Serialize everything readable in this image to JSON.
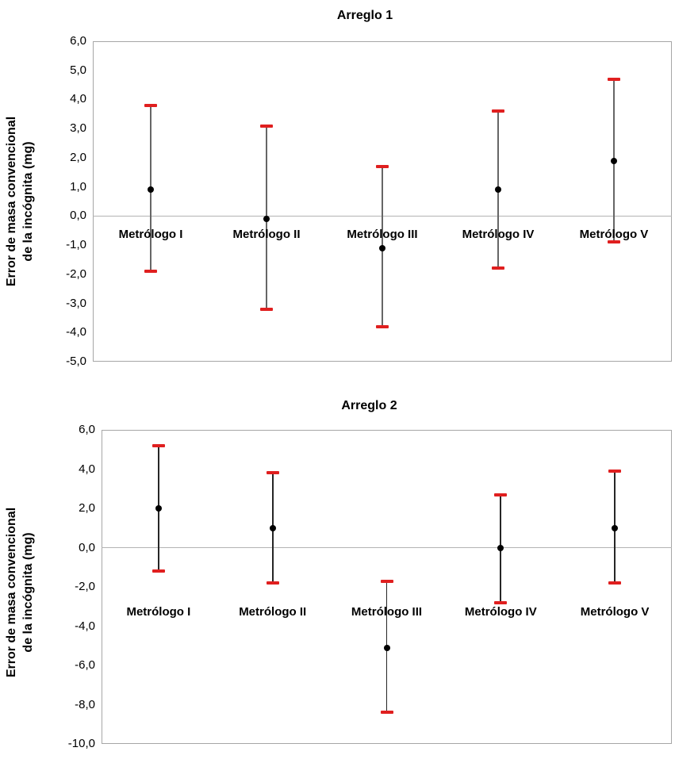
{
  "figure": {
    "background": "#ffffff"
  },
  "charts": [
    {
      "title": "Arreglo 1",
      "y_axis_title_line1": "Error de masa convencional",
      "y_axis_title_line2": "de la incógnita (mg)",
      "chart_data": {
        "type": "scatter",
        "subtype": "mean-with-error-bars",
        "categories": [
          "Metrólogo I",
          "Metrólogo II",
          "Metrólogo III",
          "Metrólogo IV",
          "Metrólogo V"
        ],
        "series": [
          {
            "name": "Error de masa convencional de la incógnita",
            "values": [
              0.9,
              -0.1,
              -1.1,
              0.9,
              1.9
            ],
            "upper_limits": [
              3.8,
              3.1,
              1.7,
              3.6,
              4.7
            ],
            "lower_limits": [
              -1.9,
              -3.2,
              -3.8,
              -1.8,
              -0.9
            ]
          }
        ],
        "xlabel": "",
        "ylabel": "Error de masa convencional de la incógnita (mg)",
        "ylim": [
          -5.0,
          6.0
        ],
        "ytick_step": 1.0,
        "ytick_labels": [
          "6,0",
          "5,0",
          "4,0",
          "3,0",
          "2,0",
          "1,0",
          "0,0",
          "-1,0",
          "-2,0",
          "-3,0",
          "-4,0",
          "-5,0"
        ],
        "zero_line": true,
        "grid": false,
        "legend": "none",
        "marker": "circle",
        "marker_color": "#000000",
        "errorbar_cap_color": "#e01f1f",
        "errorbar_line_color": "#666666"
      }
    },
    {
      "title": "Arreglo 2",
      "y_axis_title_line1": "Error de masa convencional",
      "y_axis_title_line2": "de la incógnita (mg)",
      "chart_data": {
        "type": "scatter",
        "subtype": "mean-with-error-bars",
        "categories": [
          "Metrólogo I",
          "Metrólogo II",
          "Metrólogo III",
          "Metrólogo IV",
          "Metrólogo V"
        ],
        "series": [
          {
            "name": "Error de masa convencional de la incógnita",
            "values": [
              2.0,
              1.0,
              -5.1,
              0.0,
              1.0
            ],
            "upper_limits": [
              5.2,
              3.8,
              -1.7,
              2.7,
              3.9
            ],
            "lower_limits": [
              -1.2,
              -1.8,
              -8.4,
              -2.8,
              -1.8
            ]
          }
        ],
        "xlabel": "",
        "ylabel": "Error de masa convencional de la incógnita (mg)",
        "ylim": [
          -10.0,
          6.0
        ],
        "ytick_step": 2.0,
        "ytick_labels": [
          "6,0",
          "4,0",
          "2,0",
          "0,0",
          "-2,0",
          "-4,0",
          "-6,0",
          "-8,0",
          "-10,0"
        ],
        "zero_line": true,
        "grid": false,
        "legend": "none",
        "marker": "circle",
        "marker_color": "#000000",
        "errorbar_cap_color": "#e01f1f",
        "errorbar_line_color": "#262626"
      }
    }
  ]
}
